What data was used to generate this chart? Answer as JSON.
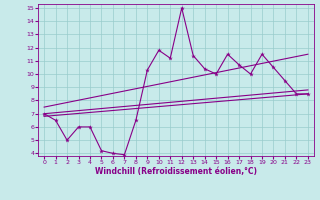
{
  "xlabel": "Windchill (Refroidissement éolien,°C)",
  "xlim": [
    -0.5,
    23.5
  ],
  "ylim": [
    3.8,
    15.3
  ],
  "yticks": [
    4,
    5,
    6,
    7,
    8,
    9,
    10,
    11,
    12,
    13,
    14,
    15
  ],
  "xticks": [
    0,
    1,
    2,
    3,
    4,
    5,
    6,
    7,
    8,
    9,
    10,
    11,
    12,
    13,
    14,
    15,
    16,
    17,
    18,
    19,
    20,
    21,
    22,
    23
  ],
  "bg_color": "#c8eaea",
  "line_color": "#880088",
  "grid_color": "#99cccc",
  "line1_x": [
    0,
    1,
    2,
    3,
    4,
    5,
    6,
    7,
    8,
    9,
    10,
    11,
    12,
    13,
    14,
    15,
    16,
    17,
    18,
    19,
    20,
    21,
    22,
    23
  ],
  "line1_y": [
    7.0,
    6.5,
    5.0,
    6.0,
    6.0,
    4.2,
    4.0,
    3.9,
    6.5,
    10.3,
    11.8,
    11.2,
    15.0,
    11.4,
    10.4,
    10.0,
    11.5,
    10.7,
    10.0,
    11.5,
    10.5,
    9.5,
    8.5,
    8.5
  ],
  "line2_x": [
    0,
    23
  ],
  "line2_y": [
    6.8,
    8.5
  ],
  "line3_x": [
    0,
    23
  ],
  "line3_y": [
    7.5,
    11.5
  ],
  "line4_x": [
    0,
    23
  ],
  "line4_y": [
    7.0,
    8.8
  ]
}
